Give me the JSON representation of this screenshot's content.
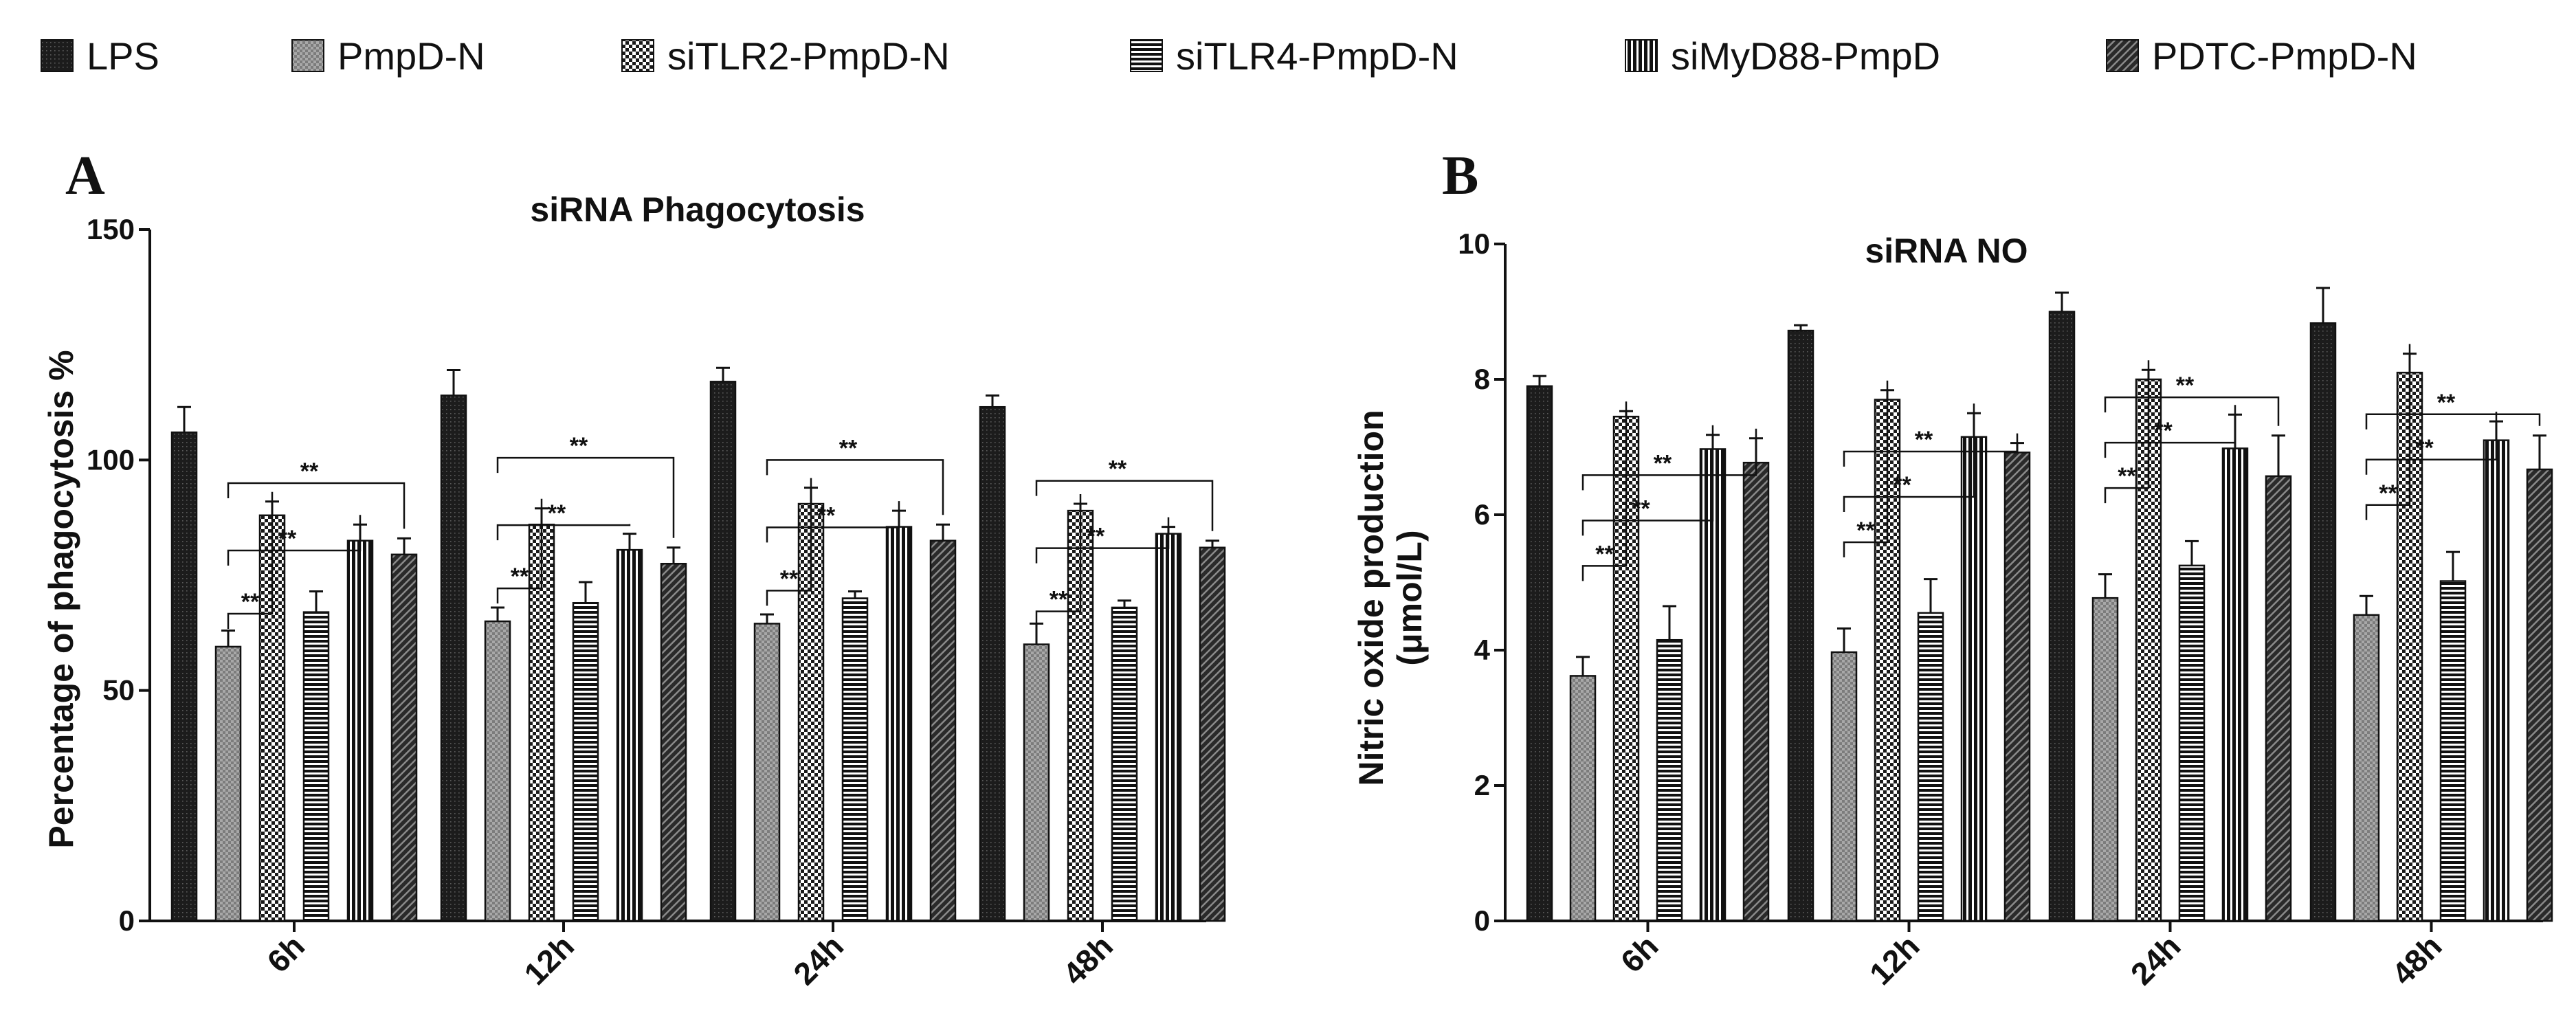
{
  "legend": {
    "items": [
      {
        "label": "LPS",
        "pattern": "pat-lps"
      },
      {
        "label": "PmpD-N",
        "pattern": "pat-pmpdn"
      },
      {
        "label": "siTLR2-PmpD-N",
        "pattern": "pat-sitlr2"
      },
      {
        "label": "siTLR4-PmpD-N",
        "pattern": "pat-sitlr4"
      },
      {
        "label": "siMyD88-PmpD",
        "pattern": "pat-simyd88"
      },
      {
        "label": "PDTC-PmpD-N",
        "pattern": "pat-pdtc"
      }
    ]
  },
  "chart_data": [
    {
      "panel": "A",
      "type": "bar",
      "title": "siRNA Phagocytosis",
      "xlabel": "",
      "ylabel": "Percentage of phagocytosis %",
      "ylim": [
        0,
        150
      ],
      "yticks": [
        0,
        50,
        100,
        150
      ],
      "categories": [
        "6h",
        "12h",
        "24h",
        "48h"
      ],
      "series": [
        {
          "name": "LPS",
          "values": [
            106,
            114,
            117,
            111.5
          ],
          "errors": [
            5.5,
            5.5,
            3,
            2.5
          ]
        },
        {
          "name": "PmpD-N",
          "values": [
            59.5,
            65,
            64.5,
            60
          ],
          "errors": [
            3.5,
            3,
            2,
            4.5
          ]
        },
        {
          "name": "siTLR2-PmpD-N",
          "values": [
            88,
            86,
            90.5,
            89
          ],
          "errors": [
            3,
            3.5,
            3.5,
            1.5
          ]
        },
        {
          "name": "siTLR4-PmpD-N",
          "values": [
            67,
            69,
            70,
            68
          ],
          "errors": [
            4.5,
            4.5,
            1.5,
            1.5
          ]
        },
        {
          "name": "siMyD88-PmpD",
          "values": [
            82.5,
            80.5,
            85.5,
            84
          ],
          "errors": [
            3.5,
            3.5,
            3.5,
            1.5
          ]
        },
        {
          "name": "PDTC-PmpD-N",
          "values": [
            79.5,
            77.5,
            82.5,
            81
          ],
          "errors": [
            3.5,
            3.5,
            3.5,
            1.5
          ]
        }
      ],
      "significance": [
        {
          "compare": "PmpD-N vs siTLR2-PmpD-N",
          "label": "**"
        },
        {
          "compare": "PmpD-N vs siMyD88-PmpD",
          "label": "**"
        },
        {
          "compare": "PmpD-N vs PDTC-PmpD-N",
          "label": "**"
        }
      ]
    },
    {
      "panel": "B",
      "type": "bar",
      "title": "siRNA NO",
      "xlabel": "",
      "ylabel": [
        "Nitric oxide production",
        "(μmol/L)"
      ],
      "ylim": [
        0,
        10
      ],
      "yticks": [
        0,
        2,
        4,
        6,
        8,
        10
      ],
      "categories": [
        "6h",
        "12h",
        "24h",
        "48h"
      ],
      "series": [
        {
          "name": "LPS",
          "values": [
            7.9,
            8.72,
            9,
            8.83
          ],
          "errors": [
            0.15,
            0.08,
            0.28,
            0.52
          ]
        },
        {
          "name": "PmpD-N",
          "values": [
            3.62,
            3.97,
            4.77,
            4.52
          ],
          "errors": [
            0.28,
            0.35,
            0.35,
            0.28
          ]
        },
        {
          "name": "siTLR2-PmpD-N",
          "values": [
            7.45,
            7.7,
            8,
            8.1
          ],
          "errors": [
            0.08,
            0.14,
            0.14,
            0.28
          ]
        },
        {
          "name": "siTLR4-PmpD-N",
          "values": [
            4.15,
            4.55,
            5.25,
            5.02
          ],
          "errors": [
            0.5,
            0.5,
            0.36,
            0.43
          ]
        },
        {
          "name": "siMyD88-PmpD",
          "values": [
            6.97,
            7.15,
            6.98,
            7.1
          ],
          "errors": [
            0.21,
            0.35,
            0.5,
            0.28
          ]
        },
        {
          "name": "PDTC-PmpD-N",
          "values": [
            6.77,
            6.92,
            6.57,
            6.67
          ],
          "errors": [
            0.36,
            0.14,
            0.6,
            0.5
          ]
        }
      ],
      "significance": [
        {
          "compare": "PmpD-N vs siTLR2-PmpD-N",
          "label": "**"
        },
        {
          "compare": "PmpD-N vs siMyD88-PmpD",
          "label": "**"
        },
        {
          "compare": "PmpD-N vs PDTC-PmpD-N",
          "label": "**"
        }
      ]
    }
  ]
}
